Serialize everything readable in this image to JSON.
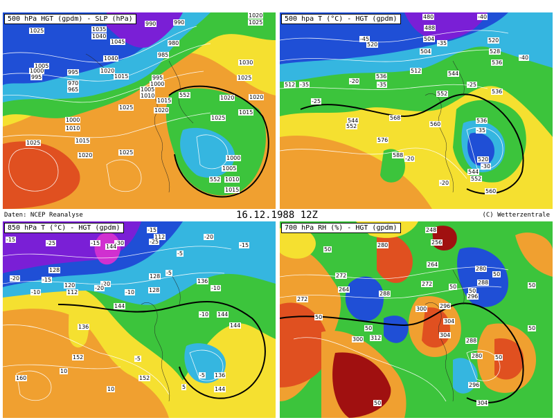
{
  "header": {
    "source": "Daten: NCEP Reanalyse",
    "datetime": "16.12.1988  12Z",
    "copyright": "(C) Wetterzentrale"
  },
  "panels": [
    {
      "id": "hgt-slp",
      "title": "500 hPa HGT (gpdm) - SLP (hPa)",
      "labels": [
        "1025",
        "1035",
        "990",
        "990",
        "1020",
        "1025",
        "1040",
        "1045",
        "980",
        "1005",
        "1000",
        "995",
        "1040",
        "985",
        "995",
        "970",
        "965",
        "1020",
        "1015",
        "995",
        "1000",
        "1005",
        "1010",
        "1030",
        "1025",
        "1020",
        "1015",
        "1025",
        "1020",
        "552",
        "1015",
        "1000",
        "1010",
        "1025",
        "1020",
        "1025",
        "1015",
        "1020",
        "1025",
        "1000",
        "1005",
        "552",
        "1010",
        "1015"
      ]
    },
    {
      "id": "t500",
      "title": "500 hpa T (°C) - HGT (gpdm)",
      "labels": [
        "480",
        "488",
        "-40",
        "504",
        "520",
        "-45",
        "520",
        "528",
        "536",
        "-40",
        "512",
        "504",
        "-35",
        "536",
        "-20",
        "544",
        "-25",
        "512",
        "-35",
        "-35",
        "536",
        "552",
        "-25",
        "544",
        "552",
        "560",
        "568",
        "576",
        "536",
        "-35",
        "588",
        "-20",
        "520",
        "-30",
        "544",
        "552",
        "-20",
        "560"
      ]
    },
    {
      "id": "t850",
      "title": "850 hPa T (°C) - HGT (gpdm)",
      "labels": [
        "-15",
        "-15",
        "-25",
        "112",
        "-30",
        "-15",
        "144",
        "-25",
        "-20",
        "-15",
        "-5",
        "128",
        "-20",
        "-15",
        "-20",
        "-5",
        "120",
        "128",
        "136",
        "-10",
        "112",
        "-10",
        "-10",
        "-20",
        "144",
        "-10",
        "144",
        "128",
        "136",
        "144",
        "152",
        "-5",
        "-5",
        "136",
        "10",
        "152",
        "160",
        "5",
        "10",
        "144"
      ]
    },
    {
      "id": "rh700",
      "title": "700 hPa RH (%) - HGT (gpdm)",
      "labels": [
        "248",
        "256",
        "280",
        "264",
        "272",
        "280",
        "50",
        "288",
        "50",
        "272",
        "50",
        "264",
        "288",
        "50",
        "296",
        "272",
        "304",
        "50",
        "296",
        "300",
        "50",
        "50",
        "312",
        "280",
        "50",
        "304",
        "288",
        "300",
        "50",
        "296",
        "304",
        "50"
      ]
    }
  ],
  "colors": {
    "violet": "#7a1fd6",
    "blue": "#1f4fd6",
    "cyan": "#35b6e0",
    "green": "#3cc43c",
    "yellow": "#f5e030",
    "orange": "#f0a030",
    "red": "#e05020",
    "darkred": "#a01010"
  }
}
